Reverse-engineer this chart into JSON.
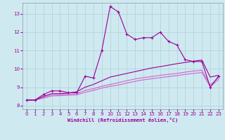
{
  "xlabel": "Windchill (Refroidissement éolien,°C)",
  "bg_color": "#cfe9f0",
  "grid_color": "#b0cfd8",
  "line_color1": "#990099",
  "line_color2": "#cc66cc",
  "x_hours": [
    0,
    1,
    2,
    3,
    4,
    5,
    6,
    7,
    8,
    9,
    10,
    11,
    12,
    13,
    14,
    15,
    16,
    17,
    18,
    19,
    20,
    21,
    22,
    23
  ],
  "main_line": [
    8.3,
    8.3,
    8.6,
    8.8,
    8.8,
    8.7,
    8.7,
    9.6,
    9.5,
    11.0,
    13.4,
    13.1,
    11.9,
    11.6,
    11.7,
    11.7,
    12.0,
    11.5,
    11.3,
    10.5,
    10.4,
    10.4,
    9.0,
    9.6
  ],
  "line2": [
    8.3,
    8.3,
    8.5,
    8.65,
    8.65,
    8.68,
    8.75,
    9.0,
    9.15,
    9.35,
    9.55,
    9.65,
    9.75,
    9.85,
    9.95,
    10.05,
    10.12,
    10.2,
    10.28,
    10.35,
    10.42,
    10.48,
    9.55,
    9.65
  ],
  "line3": [
    8.3,
    8.3,
    8.45,
    8.58,
    8.6,
    8.62,
    8.65,
    8.82,
    8.92,
    9.05,
    9.15,
    9.25,
    9.35,
    9.45,
    9.52,
    9.58,
    9.65,
    9.7,
    9.75,
    9.82,
    9.88,
    9.92,
    9.12,
    9.52
  ],
  "line4": [
    8.3,
    8.3,
    8.4,
    8.52,
    8.54,
    8.56,
    8.58,
    8.72,
    8.82,
    8.95,
    9.05,
    9.12,
    9.22,
    9.32,
    9.4,
    9.46,
    9.52,
    9.58,
    9.63,
    9.7,
    9.75,
    9.8,
    9.02,
    9.42
  ],
  "ylim": [
    7.8,
    13.6
  ],
  "yticks": [
    8,
    9,
    10,
    11,
    12,
    13
  ],
  "xlim": [
    -0.5,
    23.5
  ],
  "xticks": [
    0,
    1,
    2,
    3,
    4,
    5,
    6,
    7,
    8,
    9,
    10,
    11,
    12,
    13,
    14,
    15,
    16,
    17,
    18,
    19,
    20,
    21,
    22,
    23
  ]
}
